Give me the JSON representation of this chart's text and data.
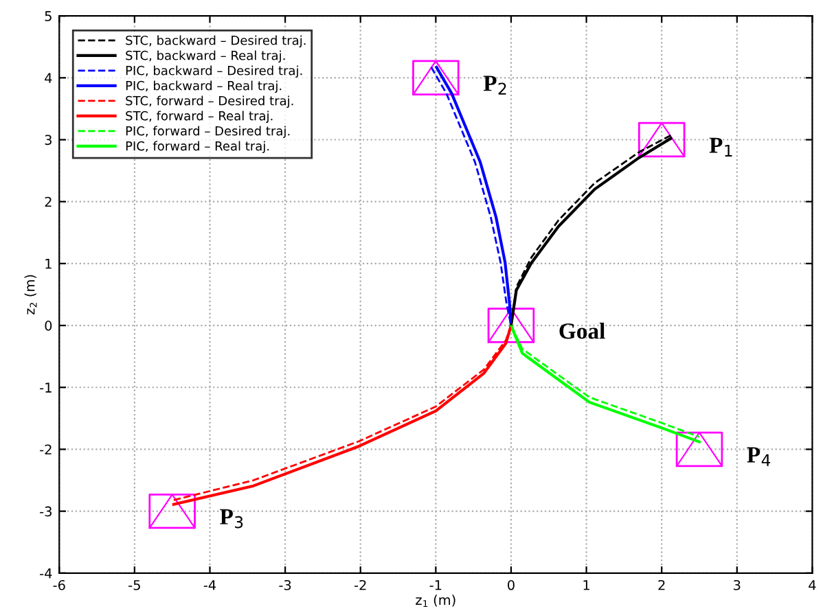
{
  "chart_data": {
    "type": "line",
    "xlabel": "z$_{1}$ (m)",
    "ylabel": "z$_{2}$ (m)",
    "xlim": [
      -6,
      4
    ],
    "ylim": [
      -4,
      5
    ],
    "xticks": [
      -6,
      -5,
      -4,
      -3,
      -2,
      -1,
      0,
      1,
      2,
      3,
      4
    ],
    "yticks": [
      -4,
      -3,
      -2,
      -1,
      0,
      1,
      2,
      3,
      4,
      5
    ],
    "grid": true,
    "legend": "top left",
    "marker": "none",
    "series": [
      {
        "name": "STC, backward – Desired traj.",
        "color": "#000000",
        "line_style": "dashed",
        "x": [
          2.12,
          1.7,
          1.11,
          0.63,
          0.27,
          0.07,
          0
        ],
        "values": [
          3.07,
          2.8,
          2.3,
          1.7,
          1.1,
          0.62,
          0
        ]
      },
      {
        "name": "STC, backward – Real traj.",
        "color": "#000000",
        "line_style": "solid",
        "x": [
          2.12,
          1.7,
          1.11,
          0.63,
          0.27,
          0.07,
          0
        ],
        "values": [
          3.02,
          2.71,
          2.2,
          1.6,
          1.01,
          0.57,
          0
        ]
      },
      {
        "name": "PIC, backward – Desired traj.",
        "color": "#0000ff",
        "line_style": "dashed",
        "x": [
          -1.06,
          -0.86,
          -0.48,
          -0.27,
          -0.14,
          -0.06,
          0
        ],
        "values": [
          4.17,
          3.75,
          2.64,
          1.75,
          1.02,
          0.35,
          0
        ]
      },
      {
        "name": "PIC, backward – Real traj.",
        "color": "#0000ff",
        "line_style": "solid",
        "x": [
          -0.99,
          -0.79,
          -0.41,
          -0.2,
          -0.08,
          -0.02,
          0
        ],
        "values": [
          4.17,
          3.75,
          2.64,
          1.75,
          1.02,
          0.35,
          0
        ]
      },
      {
        "name": "STC, forward – Desired traj.",
        "color": "#ff0000",
        "line_style": "dashed",
        "x": [
          -4.48,
          -3.42,
          -2.02,
          -1.0,
          -0.36,
          -0.07,
          0
        ],
        "values": [
          -2.82,
          -2.5,
          -1.87,
          -1.31,
          -0.71,
          -0.24,
          0
        ]
      },
      {
        "name": "STC, forward – Real traj.",
        "color": "#ff0000",
        "line_style": "solid",
        "x": [
          -4.48,
          -3.42,
          -2.02,
          -1.0,
          -0.36,
          -0.07,
          0
        ],
        "values": [
          -2.89,
          -2.59,
          -1.95,
          -1.38,
          -0.77,
          -0.29,
          0
        ]
      },
      {
        "name": "PIC, forward – Desired traj.",
        "color": "#00ff00",
        "line_style": "dashed",
        "x": [
          0,
          0.15,
          1.04,
          1.99,
          2.5
        ],
        "values": [
          0,
          -0.38,
          -1.16,
          -1.57,
          -1.8
        ]
      },
      {
        "name": "PIC, forward – Real traj.",
        "color": "#00ff00",
        "line_style": "solid",
        "x": [
          0,
          0.15,
          1.04,
          1.99,
          2.5
        ],
        "values": [
          0,
          -0.45,
          -1.24,
          -1.65,
          -1.88
        ]
      }
    ],
    "annotations": [
      {
        "text": "P$_{1}$",
        "x": 2,
        "y": 3
      },
      {
        "text": "P$_{2}$",
        "x": -1,
        "y": 4
      },
      {
        "text": "P$_{3}$",
        "x": -4.5,
        "y": -3
      },
      {
        "text": "P$_{4}$",
        "x": 2.5,
        "y": -2
      },
      {
        "text": "Goal",
        "x": 0,
        "y": 0
      }
    ]
  }
}
